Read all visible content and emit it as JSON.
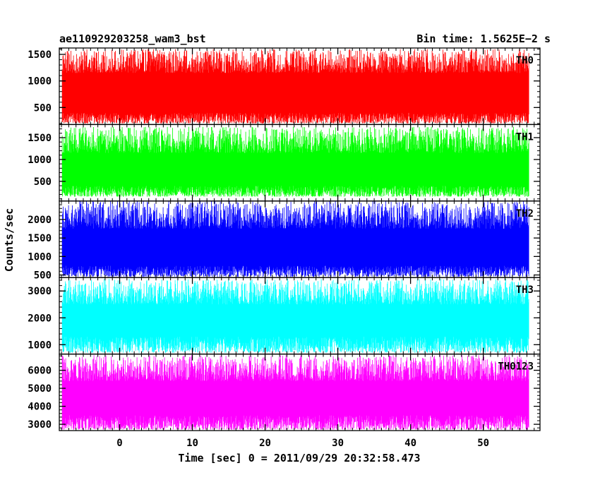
{
  "chart_data": {
    "type": "line",
    "title_left": "ae110929203258_wam3_bst",
    "title_right": "Bin time: 1.5625E−2 s",
    "xlabel": "Time [sec] 0 = 2011/09/29 20:32:58.473",
    "ylabel": "Counts/sec",
    "xlim": [
      -8.3,
      57.8
    ],
    "x_data_range": [
      -7.9,
      56.3
    ],
    "x_ticks": [
      0,
      10,
      20,
      30,
      40,
      50
    ],
    "x_tick_labels": [
      "0",
      "10",
      "20",
      "30",
      "40",
      "50"
    ],
    "x_minor_step": 1,
    "grid": false,
    "panels": [
      {
        "name": "TH0",
        "color": "#ff0000",
        "ylim": [
          180,
          1620
        ],
        "y_ticks": [
          500,
          1000,
          1500
        ],
        "y_tick_labels": [
          "500",
          "1000",
          "1500"
        ],
        "y_minor_step": 100,
        "band": {
          "min_low": 200,
          "min_high": 400,
          "max_low": 1150,
          "max_high": 1600
        }
      },
      {
        "name": "TH1",
        "color": "#00ff00",
        "ylim": [
          50,
          1800
        ],
        "y_ticks": [
          500,
          1000,
          1500
        ],
        "y_tick_labels": [
          "500",
          "1000",
          "1500"
        ],
        "y_minor_step": 100,
        "band": {
          "min_low": 150,
          "min_high": 400,
          "max_low": 1150,
          "max_high": 1750
        }
      },
      {
        "name": "TH2",
        "color": "#0000ff",
        "ylim": [
          430,
          2500
        ],
        "y_ticks": [
          500,
          1000,
          1500,
          2000
        ],
        "y_tick_labels": [
          "500",
          "1000",
          "1500",
          "2000"
        ],
        "y_minor_step": 100,
        "band": {
          "min_low": 450,
          "min_high": 750,
          "max_low": 1750,
          "max_high": 2500
        }
      },
      {
        "name": "TH3",
        "color": "#00ffff",
        "ylim": [
          650,
          3500
        ],
        "y_ticks": [
          1000,
          2000,
          3000
        ],
        "y_tick_labels": [
          "1000",
          "2000",
          "3000"
        ],
        "y_minor_step": 200,
        "band": {
          "min_low": 700,
          "min_high": 1300,
          "max_low": 2500,
          "max_high": 3450
        }
      },
      {
        "name": "TH0123",
        "color": "#ff00ff",
        "ylim": [
          2650,
          6900
        ],
        "y_ticks": [
          3000,
          4000,
          5000,
          6000
        ],
        "y_tick_labels": [
          "3000",
          "4000",
          "5000",
          "6000"
        ],
        "y_minor_step": 200,
        "band": {
          "min_low": 2700,
          "min_high": 3500,
          "max_low": 5400,
          "max_high": 6850
        }
      }
    ]
  }
}
